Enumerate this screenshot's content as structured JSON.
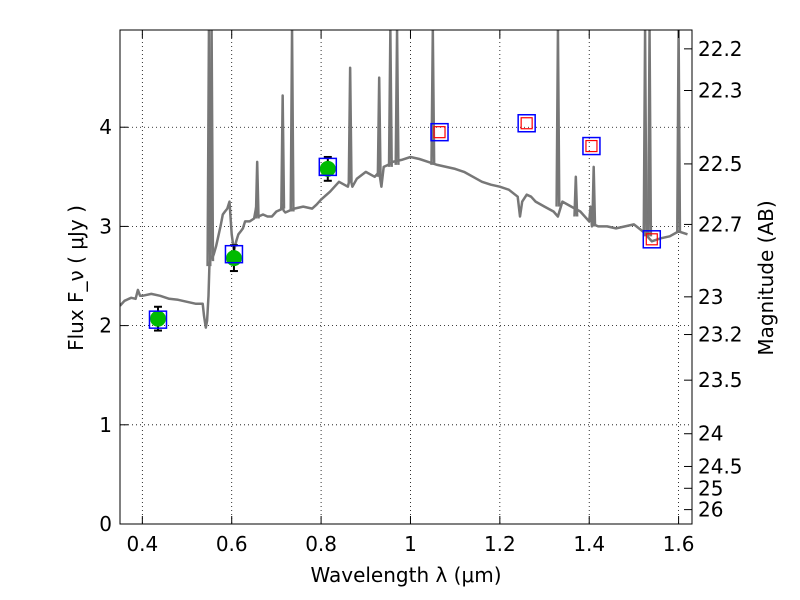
{
  "chart_data": {
    "type": "line",
    "xlabel": "Wavelength  λ (μm)",
    "ylabel": "Flux  F_ν  ( μJy )",
    "ylabel_right": "Magnitude (AB)",
    "xlim": [
      0.35,
      1.63
    ],
    "ylim": [
      0,
      4.98
    ],
    "x_ticks": [
      0.4,
      0.6,
      0.8,
      1.0,
      1.2,
      1.4,
      1.6
    ],
    "x_tick_labels": [
      "0.4",
      "0.6",
      "0.8",
      "1",
      "1.2",
      "1.4",
      "1.6"
    ],
    "y_ticks": [
      0,
      1,
      2,
      3,
      4
    ],
    "y_tick_labels": [
      "0",
      "1",
      "2",
      "3",
      "4"
    ],
    "right_ticks": [
      {
        "label": "22.2",
        "flux": 4.79
      },
      {
        "label": "22.3",
        "flux": 4.37
      },
      {
        "label": "22.5",
        "flux": 3.63
      },
      {
        "label": "22.7",
        "flux": 3.02
      },
      {
        "label": "23",
        "flux": 2.29
      },
      {
        "label": "23.2",
        "flux": 1.91
      },
      {
        "label": "23.5",
        "flux": 1.45
      },
      {
        "label": "24",
        "flux": 0.91
      },
      {
        "label": "24.5",
        "flux": 0.58
      },
      {
        "label": "25",
        "flux": 0.36
      },
      {
        "label": "26",
        "flux": 0.145
      }
    ],
    "grid": true,
    "series": [
      {
        "kind": "model_spectrum",
        "color": "#777777",
        "x": [
          0.35,
          0.36,
          0.375,
          0.385,
          0.39,
          0.395,
          0.4,
          0.42,
          0.44,
          0.46,
          0.48,
          0.5,
          0.52,
          0.535,
          0.538,
          0.542,
          0.545,
          0.548,
          0.55,
          0.553,
          0.556,
          0.56,
          0.565,
          0.57,
          0.575,
          0.58,
          0.585,
          0.59,
          0.595,
          0.6,
          0.605,
          0.61,
          0.615,
          0.62,
          0.625,
          0.63,
          0.64,
          0.65,
          0.655,
          0.66,
          0.67,
          0.68,
          0.69,
          0.7,
          0.71,
          0.713,
          0.716,
          0.72,
          0.73,
          0.74,
          0.76,
          0.78,
          0.79,
          0.8,
          0.82,
          0.84,
          0.86,
          0.865,
          0.87,
          0.88,
          0.9,
          0.92,
          0.93,
          0.935,
          0.94,
          0.95,
          0.96,
          0.98,
          1.0,
          1.02,
          1.04,
          1.06,
          1.08,
          1.1,
          1.12,
          1.14,
          1.16,
          1.18,
          1.2,
          1.22,
          1.24,
          1.245,
          1.25,
          1.26,
          1.27,
          1.28,
          1.3,
          1.32,
          1.33,
          1.34,
          1.36,
          1.38,
          1.4,
          1.403,
          1.406,
          1.41,
          1.42,
          1.44,
          1.46,
          1.48,
          1.5,
          1.52,
          1.54,
          1.56,
          1.58,
          1.6,
          1.62
        ],
        "y": [
          2.2,
          2.25,
          2.28,
          2.27,
          2.36,
          2.3,
          2.3,
          2.32,
          2.3,
          2.27,
          2.26,
          2.24,
          2.22,
          2.22,
          2.1,
          1.98,
          2.05,
          2.3,
          2.6,
          2.7,
          2.68,
          2.72,
          2.8,
          2.9,
          3.0,
          3.12,
          3.15,
          3.18,
          3.25,
          2.92,
          2.75,
          2.85,
          2.92,
          2.95,
          2.98,
          3.05,
          3.05,
          3.08,
          3.2,
          3.1,
          3.12,
          3.1,
          3.1,
          3.15,
          3.17,
          3.22,
          3.16,
          3.14,
          3.16,
          3.18,
          3.2,
          3.18,
          3.22,
          3.27,
          3.35,
          3.45,
          3.4,
          3.5,
          3.4,
          3.48,
          3.55,
          3.5,
          3.55,
          3.4,
          3.6,
          3.62,
          3.65,
          3.67,
          3.7,
          3.68,
          3.65,
          3.62,
          3.6,
          3.58,
          3.55,
          3.5,
          3.45,
          3.42,
          3.4,
          3.37,
          3.3,
          3.1,
          3.25,
          3.32,
          3.3,
          3.25,
          3.2,
          3.15,
          3.1,
          3.25,
          3.2,
          3.15,
          3.05,
          3.2,
          3.0,
          3.02,
          3.0,
          3.0,
          2.98,
          3.0,
          3.02,
          2.95,
          2.85,
          2.88,
          2.9,
          2.95,
          2.92
        ]
      },
      {
        "kind": "emission_lines",
        "color": "#777777",
        "lines": [
          {
            "x": 0.549,
            "peak": 4.98,
            "base": 2.6
          },
          {
            "x": 0.555,
            "peak": 4.98,
            "base": 2.65
          },
          {
            "x": 0.657,
            "peak": 3.65,
            "base": 3.08
          },
          {
            "x": 0.714,
            "peak": 4.32,
            "base": 3.18
          },
          {
            "x": 0.735,
            "peak": 4.98,
            "base": 3.15
          },
          {
            "x": 0.865,
            "peak": 4.6,
            "base": 3.45
          },
          {
            "x": 0.93,
            "peak": 4.5,
            "base": 3.5
          },
          {
            "x": 0.955,
            "peak": 4.98,
            "base": 3.6
          },
          {
            "x": 0.97,
            "peak": 4.98,
            "base": 3.62
          },
          {
            "x": 1.05,
            "peak": 4.98,
            "base": 3.62
          },
          {
            "x": 1.33,
            "peak": 4.98,
            "base": 3.2
          },
          {
            "x": 1.37,
            "peak": 3.5,
            "base": 3.1
          },
          {
            "x": 1.41,
            "peak": 3.6,
            "base": 3.0
          },
          {
            "x": 1.525,
            "peak": 4.98,
            "base": 2.9
          },
          {
            "x": 1.535,
            "peak": 4.98,
            "base": 2.9
          },
          {
            "x": 1.6,
            "peak": 4.98,
            "base": 2.95
          }
        ]
      },
      {
        "kind": "observed_photometry",
        "marker": "circle",
        "color": "#00bb00",
        "x": [
          0.435,
          0.605,
          0.815
        ],
        "y": [
          2.07,
          2.68,
          3.58
        ],
        "yerr": [
          0.12,
          0.13,
          0.12
        ]
      },
      {
        "kind": "model_photometry",
        "marker": "square",
        "color": "#0000ff",
        "x": [
          0.435,
          0.605,
          0.815,
          1.065,
          1.26,
          1.405,
          1.54
        ],
        "y": [
          2.06,
          2.72,
          3.6,
          3.95,
          4.04,
          3.81,
          2.87
        ]
      },
      {
        "kind": "upper_limits",
        "marker": "square",
        "color": "#ff0000",
        "x": [
          1.065,
          1.26,
          1.405,
          1.54
        ],
        "y": [
          3.95,
          4.04,
          3.81,
          2.87
        ]
      }
    ]
  }
}
